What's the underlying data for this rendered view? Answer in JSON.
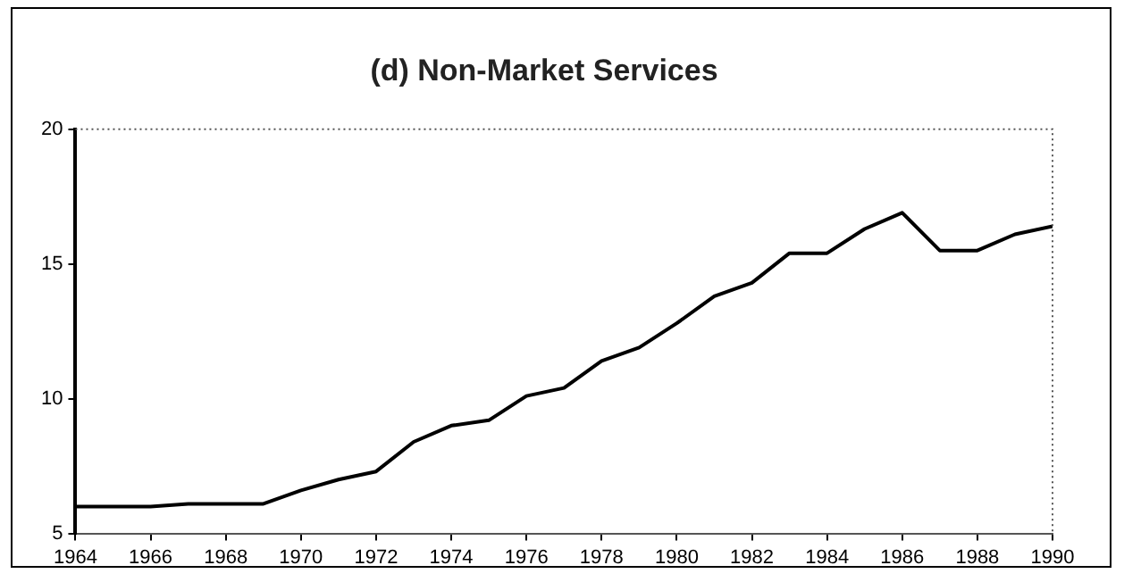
{
  "chart_data": {
    "type": "line",
    "title": "(d) Non-Market Services",
    "x": [
      1964,
      1965,
      1966,
      1967,
      1968,
      1969,
      1970,
      1971,
      1972,
      1973,
      1974,
      1975,
      1976,
      1977,
      1978,
      1979,
      1980,
      1981,
      1982,
      1983,
      1984,
      1985,
      1986,
      1987,
      1988,
      1989,
      1990
    ],
    "series": [
      {
        "color": "#000000",
        "values": [
          6.0,
          6.0,
          6.0,
          6.1,
          6.1,
          6.1,
          6.6,
          7.0,
          7.3,
          8.4,
          9.0,
          9.2,
          10.1,
          10.4,
          11.4,
          11.9,
          12.8,
          13.8,
          14.3,
          15.4,
          15.4,
          16.3,
          16.9,
          15.5,
          15.5,
          16.1,
          16.4
        ]
      }
    ],
    "xlim": [
      1964,
      1990
    ],
    "xticks": [
      1964,
      1966,
      1968,
      1970,
      1972,
      1974,
      1976,
      1978,
      1980,
      1982,
      1984,
      1986,
      1988,
      1990
    ],
    "ylim": [
      5,
      20
    ],
    "yticks": [
      5,
      10,
      15,
      20
    ],
    "grid": false,
    "legend": false,
    "marker": "none",
    "line_style": "solid"
  }
}
